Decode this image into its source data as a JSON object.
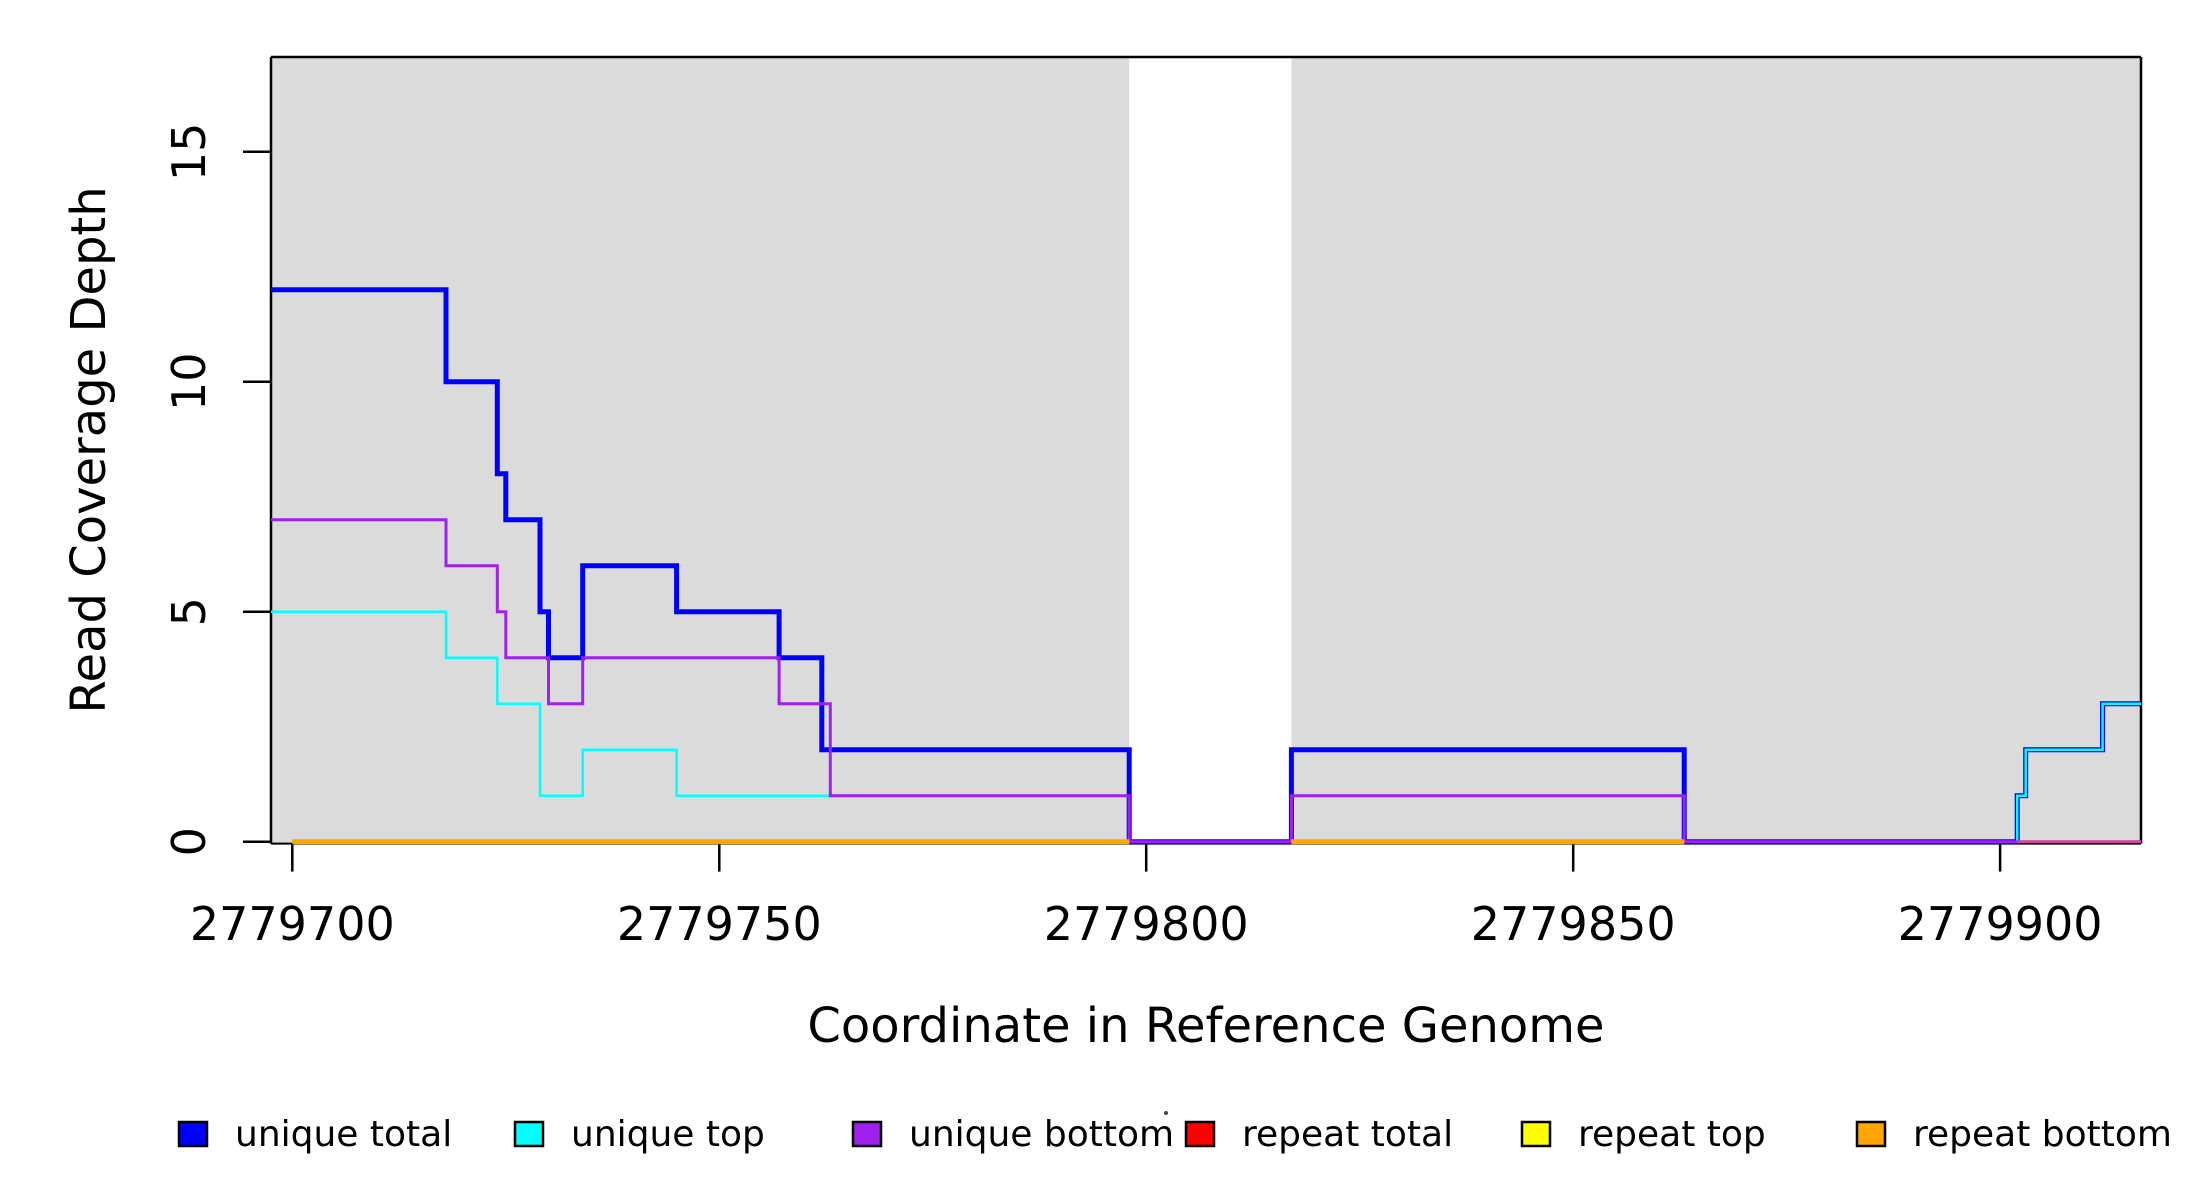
{
  "chart_data": {
    "type": "line",
    "step": "after",
    "title": "",
    "xlabel": "Coordinate in Reference Genome",
    "ylabel": "Read Coverage Depth",
    "xlim": [
      2779697.5,
      2779916.5
    ],
    "ylim": [
      0,
      17.06
    ],
    "x_ticks": [
      "2779700",
      "2779750",
      "2779800",
      "2779850",
      "2779900"
    ],
    "x_tick_values": [
      2779700,
      2779750,
      2779800,
      2779850,
      2779900
    ],
    "y_ticks": [
      "0",
      "5",
      "10",
      "15"
    ],
    "y_tick_values": [
      0,
      5,
      10,
      15
    ],
    "grid": "off",
    "background_color": "#FFFFFF",
    "shaded_region_color": "#DBDBDB",
    "shaded_regions": [
      {
        "x_start": 2779697.5,
        "x_end": 2779798
      },
      {
        "x_start": 2779817,
        "x_end": 2779916.5
      }
    ],
    "series": [
      {
        "name": "unique total",
        "color": "#0000FF",
        "width": 5,
        "segments": [
          {
            "points": [
              [
                2779697.5,
                12
              ],
              [
                2779718,
                10
              ],
              [
                2779724,
                8
              ],
              [
                2779725,
                7
              ],
              [
                2779729,
                5
              ],
              [
                2779730,
                4
              ],
              [
                2779734,
                6
              ],
              [
                2779745,
                5
              ],
              [
                2779757,
                4
              ],
              [
                2779762,
                2
              ],
              [
                2779798,
                0
              ],
              [
                2779817,
                2
              ],
              [
                2779863,
                0
              ],
              [
                2779902,
                1
              ],
              [
                2779903,
                2
              ],
              [
                2779912,
                3
              ]
            ],
            "end": 2779916.5
          }
        ]
      },
      {
        "name": "unique top",
        "color": "#00FFFF",
        "width": 2.5,
        "segments": [
          {
            "points": [
              [
                2779697.5,
                5
              ],
              [
                2779718,
                4
              ],
              [
                2779724,
                3
              ],
              [
                2779729,
                1
              ],
              [
                2779734,
                2
              ],
              [
                2779745,
                1
              ],
              [
                2779798,
                0
              ],
              [
                2779817,
                1
              ],
              [
                2779863,
                0
              ],
              [
                2779902,
                1
              ],
              [
                2779903,
                2
              ],
              [
                2779912,
                3
              ]
            ],
            "end": 2779916.5
          }
        ]
      },
      {
        "name": "unique bottom",
        "color": "#A020F0",
        "width": 3,
        "segments": [
          {
            "points": [
              [
                2779697.5,
                7
              ],
              [
                2779718,
                6
              ],
              [
                2779724,
                5
              ],
              [
                2779725,
                4
              ],
              [
                2779730,
                3
              ],
              [
                2779734,
                4
              ],
              [
                2779757,
                3
              ],
              [
                2779763,
                1
              ],
              [
                2779798,
                0
              ],
              [
                2779817,
                1
              ],
              [
                2779863,
                0
              ]
            ],
            "end": 2779916.5
          }
        ]
      },
      {
        "name": "repeat total",
        "color": "#FF0000",
        "render_color": "#D9488F",
        "width": 2.5,
        "segments": [
          {
            "points": [
              [
                2779700,
                0
              ]
            ],
            "end": 2779798
          },
          {
            "points": [
              [
                2779817,
                0
              ]
            ],
            "end": 2779863
          },
          {
            "points": [
              [
                2779902,
                0
              ]
            ],
            "end": 2779916.5
          }
        ]
      },
      {
        "name": "repeat top",
        "color": "#FFFF00",
        "width": 2.5,
        "segments": [
          {
            "points": [
              [
                2779700,
                0
              ]
            ],
            "end": 2779798
          },
          {
            "points": [
              [
                2779817,
                0
              ]
            ],
            "end": 2779863
          }
        ]
      },
      {
        "name": "repeat bottom",
        "color": "#FFA500",
        "width": 5,
        "segments": [
          {
            "points": [
              [
                2779700,
                0
              ]
            ],
            "end": 2779798
          },
          {
            "points": [
              [
                2779817,
                0
              ]
            ],
            "end": 2779863
          }
        ]
      }
    ],
    "legend": [
      {
        "label": "unique total",
        "color": "#0000FF"
      },
      {
        "label": "unique top",
        "color": "#00FFFF"
      },
      {
        "label": "unique bottom",
        "color": "#A020F0"
      },
      {
        "label": "repeat total",
        "color": "#FF0000"
      },
      {
        "label": "repeat top",
        "color": "#FFFF00"
      },
      {
        "label": "repeat bottom",
        "color": "#FFA500"
      }
    ],
    "legend_position": "bottom"
  }
}
